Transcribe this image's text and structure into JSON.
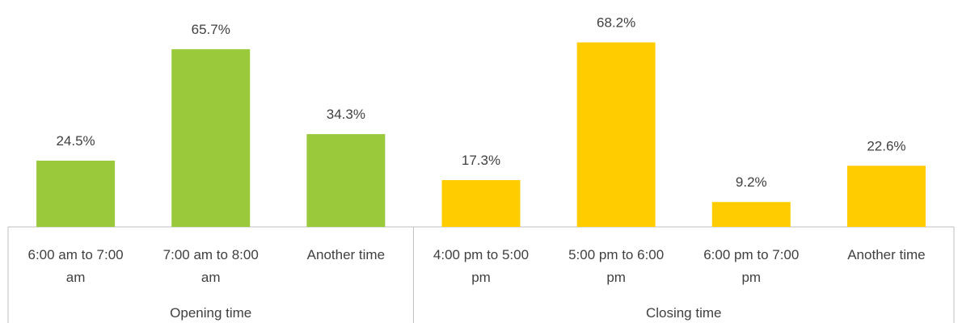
{
  "chart_data": {
    "type": "bar",
    "value_format": "percent_1dp",
    "colors": {
      "opening": "#9ACA3C",
      "closing": "#FFCC00",
      "axis": "#BFBFBF",
      "text": "#404040"
    },
    "groups": [
      {
        "name": "Opening time",
        "color_key": "opening",
        "categories": [
          {
            "label_lines": [
              "6:00 am to 7:00",
              "am"
            ],
            "value": 24.5,
            "value_label": "24.5%"
          },
          {
            "label_lines": [
              "7:00 am to 8:00",
              "am"
            ],
            "value": 65.7,
            "value_label": "65.7%"
          },
          {
            "label_lines": [
              "Another time"
            ],
            "value": 34.3,
            "value_label": "34.3%"
          }
        ]
      },
      {
        "name": "Closing time",
        "color_key": "closing",
        "categories": [
          {
            "label_lines": [
              "4:00 pm to 5:00",
              "pm"
            ],
            "value": 17.3,
            "value_label": "17.3%"
          },
          {
            "label_lines": [
              "5:00 pm to 6:00",
              "pm"
            ],
            "value": 68.2,
            "value_label": "68.2%"
          },
          {
            "label_lines": [
              "6:00 pm to 7:00",
              "pm"
            ],
            "value": 9.2,
            "value_label": "9.2%"
          },
          {
            "label_lines": [
              "Another time"
            ],
            "value": 22.6,
            "value_label": "22.6%"
          }
        ]
      }
    ],
    "ylim": [
      0,
      80
    ],
    "grid": false,
    "legend": "none"
  }
}
